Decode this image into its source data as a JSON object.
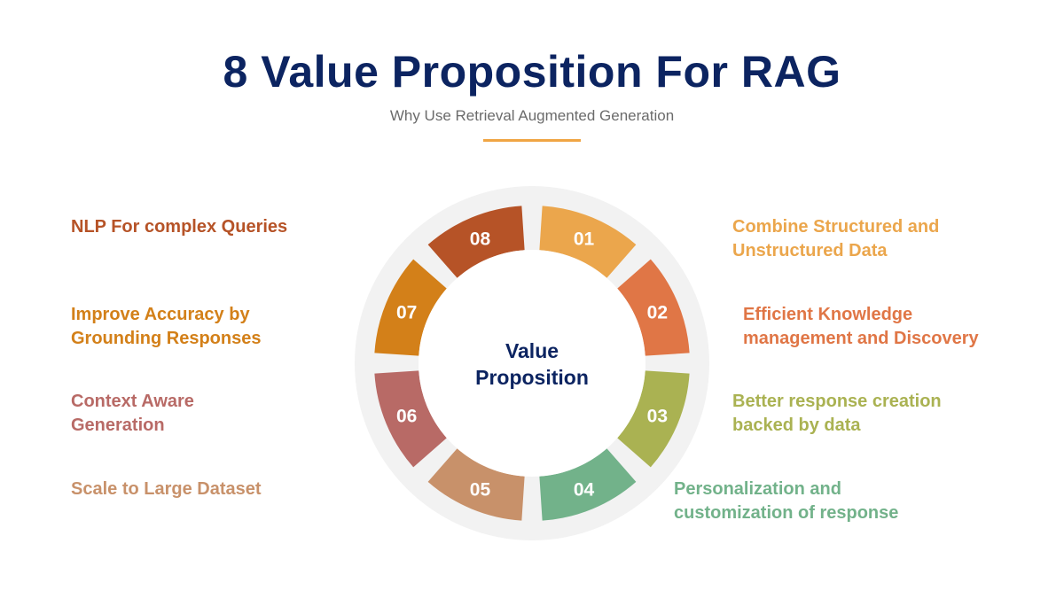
{
  "header": {
    "title": "8 Value Proposition For RAG",
    "subtitle": "Why Use Retrieval Augmented Generation"
  },
  "center": {
    "line1": "Value",
    "line2": "Proposition"
  },
  "colors": {
    "title": "#0c2461",
    "wheel_background": "#f2f2f2",
    "center_fill": "#ffffff",
    "accent": "#f0a544"
  },
  "segments": [
    {
      "number": "01",
      "color": "#eba64c",
      "label_lines": [
        "Combine Structured and",
        "Unstructured Data"
      ]
    },
    {
      "number": "02",
      "color": "#e07646",
      "label_lines": [
        "Efficient Knowledge",
        "management and Discovery"
      ]
    },
    {
      "number": "03",
      "color": "#aab252",
      "label_lines": [
        "Better response creation",
        "backed by data"
      ]
    },
    {
      "number": "04",
      "color": "#72b28a",
      "label_lines": [
        "Personalization and",
        "customization of response"
      ]
    },
    {
      "number": "05",
      "color": "#c8916a",
      "label_lines": [
        "Scale to Large Dataset"
      ]
    },
    {
      "number": "06",
      "color": "#b86a66",
      "label_lines": [
        "Context Aware",
        "Generation"
      ]
    },
    {
      "number": "07",
      "color": "#d38019",
      "label_lines": [
        "Improve Accuracy by",
        "Grounding Responses"
      ]
    },
    {
      "number": "08",
      "color": "#b65327",
      "label_lines": [
        "NLP For complex Queries"
      ]
    }
  ]
}
